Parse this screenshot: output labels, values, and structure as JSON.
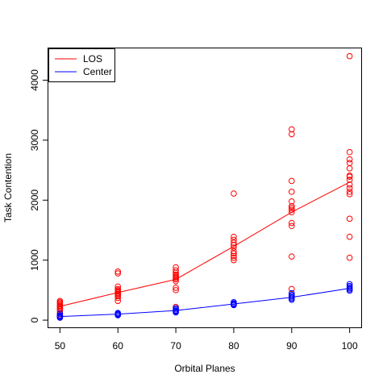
{
  "chart_data": {
    "type": "scatter",
    "title": "",
    "xlabel": "Orbital Planes",
    "ylabel": "Task Contention",
    "xlim": [
      48,
      102
    ],
    "ylim": [
      -120,
      4530
    ],
    "x_ticks": [
      50,
      60,
      70,
      80,
      90,
      100
    ],
    "y_ticks": [
      0,
      1000,
      2000,
      3000,
      4000
    ],
    "grid": false,
    "legend": {
      "position": "top-left",
      "entries": [
        "LOS",
        "Center"
      ]
    },
    "series": [
      {
        "name": "LOS",
        "color": "#ff0000",
        "marker": "open-circle",
        "trend_line": {
          "x": [
            50,
            60,
            70,
            80,
            90,
            100
          ],
          "y": [
            230,
            460,
            680,
            1230,
            1800,
            2300
          ]
        },
        "points": [
          [
            50,
            320
          ],
          [
            50,
            300
          ],
          [
            50,
            280
          ],
          [
            50,
            260
          ],
          [
            50,
            240
          ],
          [
            50,
            220
          ],
          [
            50,
            200
          ],
          [
            50,
            180
          ],
          [
            50,
            150
          ],
          [
            50,
            100
          ],
          [
            60,
            810
          ],
          [
            60,
            780
          ],
          [
            60,
            560
          ],
          [
            60,
            520
          ],
          [
            60,
            500
          ],
          [
            60,
            480
          ],
          [
            60,
            460
          ],
          [
            60,
            440
          ],
          [
            60,
            420
          ],
          [
            60,
            400
          ],
          [
            60,
            370
          ],
          [
            60,
            320
          ],
          [
            70,
            880
          ],
          [
            70,
            830
          ],
          [
            70,
            790
          ],
          [
            70,
            760
          ],
          [
            70,
            740
          ],
          [
            70,
            720
          ],
          [
            70,
            700
          ],
          [
            70,
            680
          ],
          [
            70,
            650
          ],
          [
            70,
            540
          ],
          [
            70,
            500
          ],
          [
            70,
            220
          ],
          [
            80,
            2110
          ],
          [
            80,
            1390
          ],
          [
            80,
            1340
          ],
          [
            80,
            1290
          ],
          [
            80,
            1250
          ],
          [
            80,
            1210
          ],
          [
            80,
            1150
          ],
          [
            80,
            1110
          ],
          [
            80,
            1070
          ],
          [
            80,
            1040
          ],
          [
            80,
            1000
          ],
          [
            90,
            3180
          ],
          [
            90,
            3100
          ],
          [
            90,
            2320
          ],
          [
            90,
            2140
          ],
          [
            90,
            1980
          ],
          [
            90,
            1900
          ],
          [
            90,
            1870
          ],
          [
            90,
            1840
          ],
          [
            90,
            1800
          ],
          [
            90,
            1620
          ],
          [
            90,
            1570
          ],
          [
            90,
            1060
          ],
          [
            90,
            520
          ],
          [
            100,
            4400
          ],
          [
            100,
            2800
          ],
          [
            100,
            2680
          ],
          [
            100,
            2620
          ],
          [
            100,
            2530
          ],
          [
            100,
            2410
          ],
          [
            100,
            2390
          ],
          [
            100,
            2340
          ],
          [
            100,
            2260
          ],
          [
            100,
            2200
          ],
          [
            100,
            2140
          ],
          [
            100,
            2100
          ],
          [
            100,
            1690
          ],
          [
            100,
            1390
          ],
          [
            100,
            1040
          ]
        ]
      },
      {
        "name": "Center",
        "color": "#0000ff",
        "marker": "open-circle",
        "trend_line": {
          "x": [
            50,
            60,
            70,
            80,
            90,
            100
          ],
          "y": [
            60,
            100,
            160,
            270,
            380,
            530
          ]
        },
        "points": [
          [
            50,
            110
          ],
          [
            50,
            80
          ],
          [
            50,
            70
          ],
          [
            50,
            60
          ],
          [
            50,
            50
          ],
          [
            50,
            40
          ],
          [
            60,
            120
          ],
          [
            60,
            110
          ],
          [
            60,
            100
          ],
          [
            60,
            90
          ],
          [
            60,
            80
          ],
          [
            70,
            200
          ],
          [
            70,
            180
          ],
          [
            70,
            160
          ],
          [
            70,
            150
          ],
          [
            70,
            140
          ],
          [
            70,
            130
          ],
          [
            80,
            300
          ],
          [
            80,
            280
          ],
          [
            80,
            270
          ],
          [
            80,
            260
          ],
          [
            80,
            250
          ],
          [
            90,
            450
          ],
          [
            90,
            420
          ],
          [
            90,
            400
          ],
          [
            90,
            380
          ],
          [
            90,
            360
          ],
          [
            90,
            340
          ],
          [
            100,
            600
          ],
          [
            100,
            570
          ],
          [
            100,
            550
          ],
          [
            100,
            530
          ],
          [
            100,
            510
          ],
          [
            100,
            490
          ]
        ]
      }
    ]
  }
}
